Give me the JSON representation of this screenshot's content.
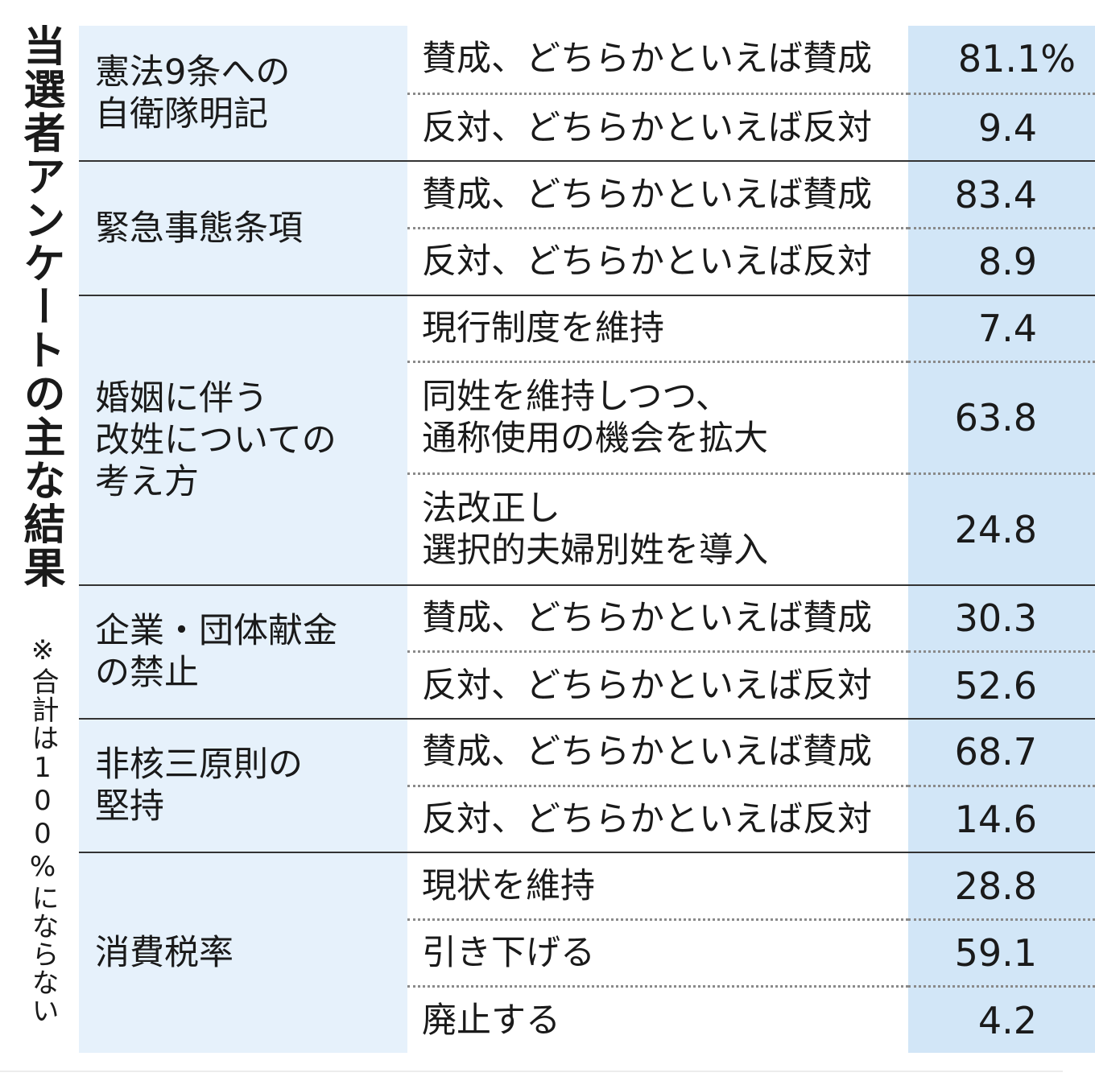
{
  "title": "当選者アンケートの主な結果",
  "note": "※合計は100%にならない",
  "groups": [
    {
      "topic": "憲法9条への\n自衛隊明記",
      "rows": [
        {
          "option": "賛成、どちらかといえば賛成",
          "value": "81.1%"
        },
        {
          "option": "反対、どちらかといえば反対",
          "value": "9.4"
        }
      ]
    },
    {
      "topic": "緊急事態条項",
      "rows": [
        {
          "option": "賛成、どちらかといえば賛成",
          "value": "83.4"
        },
        {
          "option": "反対、どちらかといえば反対",
          "value": "8.9"
        }
      ]
    },
    {
      "topic": "婚姻に伴う\n改姓についての\n考え方",
      "rows": [
        {
          "option": "現行制度を維持",
          "value": "7.4"
        },
        {
          "option": "同姓を維持しつつ、\n通称使用の機会を拡大",
          "value": "63.8"
        },
        {
          "option": "法改正し\n選択的夫婦別姓を導入",
          "value": "24.8"
        }
      ]
    },
    {
      "topic": "企業・団体献金\nの禁止",
      "rows": [
        {
          "option": "賛成、どちらかといえば賛成",
          "value": "30.3"
        },
        {
          "option": "反対、どちらかといえば反対",
          "value": "52.6"
        }
      ]
    },
    {
      "topic": "非核三原則の\n堅持",
      "rows": [
        {
          "option": "賛成、どちらかといえば賛成",
          "value": "68.7"
        },
        {
          "option": "反対、どちらかといえば反対",
          "value": "14.6"
        }
      ]
    },
    {
      "topic": "消費税率",
      "rows": [
        {
          "option": "現状を維持",
          "value": "28.8"
        },
        {
          "option": "引き下げる",
          "value": "59.1"
        },
        {
          "option": "廃止する",
          "value": "4.2"
        }
      ]
    }
  ]
}
